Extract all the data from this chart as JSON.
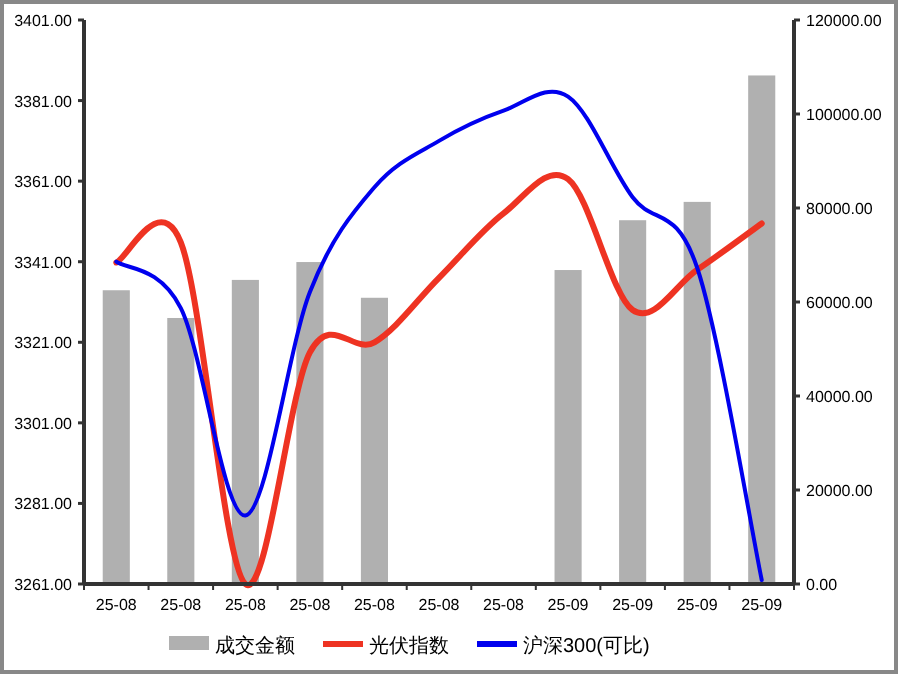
{
  "chart_data": {
    "type": "bar",
    "categories": [
      "25-08",
      "25-08",
      "25-08",
      "25-08",
      "25-08",
      "25-08",
      "25-08",
      "25-09",
      "25-09",
      "25-09",
      "25-09"
    ],
    "series": [
      {
        "name": "成交金额",
        "axis": "y2",
        "color": "#b0b0b0",
        "values": [
          62500,
          56600,
          64700,
          68500,
          60900,
          null,
          null,
          66800,
          77400,
          81300,
          108200
        ]
      },
      {
        "name": "光伏指数",
        "type": "line",
        "color": "#ee3322",
        "values": [
          3340.8,
          3345.8,
          3261,
          3318.5,
          3321,
          3337,
          3353,
          3361.5,
          3329,
          3339,
          3350.5
        ]
      },
      {
        "name": "沪深300(可比)",
        "type": "line",
        "color": "#0000ee",
        "values": [
          3341,
          3329.5,
          3278,
          3333.5,
          3359.5,
          3371,
          3378.5,
          3382,
          3357,
          3339.5,
          3262
        ]
      }
    ],
    "ylim": [
      3261,
      3401
    ],
    "yticks": [
      {
        "value": 3261,
        "label": "3261.00"
      },
      {
        "value": 3281,
        "label": "3281.00"
      },
      {
        "value": 3301,
        "label": "3301.00"
      },
      {
        "value": 3321,
        "label": "3321.00"
      },
      {
        "value": 3341,
        "label": "3341.00"
      },
      {
        "value": 3361,
        "label": "3361.00"
      },
      {
        "value": 3381,
        "label": "3381.00"
      },
      {
        "value": 3401,
        "label": "3401.00"
      }
    ],
    "y2lim": [
      0,
      120000
    ],
    "y2ticks": [
      {
        "value": 0,
        "label": "0.00"
      },
      {
        "value": 20000,
        "label": "20000.00"
      },
      {
        "value": 40000,
        "label": "40000.00"
      },
      {
        "value": 60000,
        "label": "60000.00"
      },
      {
        "value": 80000,
        "label": "80000.00"
      },
      {
        "value": 100000,
        "label": "100000.00"
      },
      {
        "value": 120000,
        "label": "120000.00"
      }
    ],
    "legend": "bottom",
    "grid": false
  }
}
